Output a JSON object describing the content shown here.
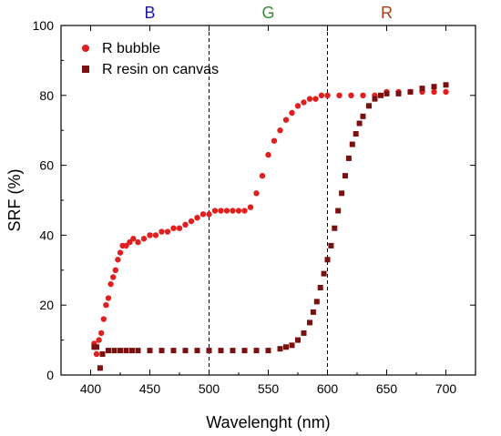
{
  "chart_data": {
    "type": "scatter",
    "xlabel": "Wavelenght (nm)",
    "ylabel": "SRF (%)",
    "xlim": [
      375,
      725
    ],
    "ylim": [
      0,
      100
    ],
    "xticks": [
      400,
      450,
      500,
      550,
      600,
      650,
      700
    ],
    "yticks": [
      0,
      20,
      40,
      60,
      80,
      100
    ],
    "grid": false,
    "legend_position": "top-left",
    "vlines": [
      500,
      600
    ],
    "regions": [
      {
        "label": "B",
        "x": 450,
        "color": "#1a1aa6"
      },
      {
        "label": "G",
        "x": 550,
        "color": "#2f8f2f"
      },
      {
        "label": "R",
        "x": 650,
        "color": "#b33a1a"
      }
    ],
    "series": [
      {
        "name": "R bubble",
        "marker": "circle",
        "color": "#e02020",
        "x": [
          403,
          405,
          407,
          409,
          411,
          413,
          415,
          417,
          419,
          421,
          423,
          425,
          427,
          430,
          433,
          436,
          440,
          445,
          450,
          455,
          460,
          465,
          470,
          475,
          480,
          485,
          490,
          495,
          500,
          505,
          510,
          515,
          520,
          525,
          530,
          535,
          540,
          545,
          550,
          555,
          560,
          565,
          570,
          575,
          580,
          585,
          590,
          595,
          600,
          610,
          620,
          630,
          640,
          650,
          660,
          670,
          680,
          690,
          700
        ],
        "y": [
          9,
          6,
          10,
          12,
          16,
          20,
          22,
          26,
          28,
          30,
          33,
          35,
          37,
          37,
          38,
          39,
          38,
          39,
          40,
          40,
          41,
          41,
          42,
          42,
          43,
          44,
          45,
          46,
          46,
          47,
          47,
          47,
          47,
          47,
          47,
          48,
          52,
          57,
          63,
          67,
          70,
          73,
          75,
          77,
          78,
          79,
          79,
          80,
          80,
          80,
          80,
          80,
          80,
          81,
          81,
          81,
          81,
          81,
          81
        ]
      },
      {
        "name": "R resin on canvas",
        "marker": "square",
        "color": "#7a1010",
        "x": [
          403,
          405,
          408,
          410,
          415,
          420,
          425,
          430,
          435,
          440,
          450,
          460,
          470,
          480,
          490,
          500,
          510,
          520,
          530,
          540,
          550,
          560,
          565,
          570,
          575,
          580,
          585,
          588,
          591,
          594,
          597,
          600,
          603,
          606,
          609,
          612,
          615,
          618,
          621,
          624,
          627,
          630,
          635,
          640,
          645,
          650,
          660,
          670,
          680,
          690,
          700
        ],
        "y": [
          8,
          8,
          2,
          6,
          7,
          7,
          7,
          7,
          7,
          7,
          7,
          7,
          7,
          7,
          7,
          7,
          7,
          7,
          7,
          7,
          7,
          7.5,
          8,
          8.5,
          10,
          12,
          15,
          18,
          21,
          25,
          29,
          33,
          37,
          42,
          47,
          52,
          57,
          62,
          66,
          69,
          72,
          74,
          77,
          79,
          80,
          80.5,
          80.5,
          81,
          82,
          82.5,
          83
        ]
      }
    ]
  }
}
